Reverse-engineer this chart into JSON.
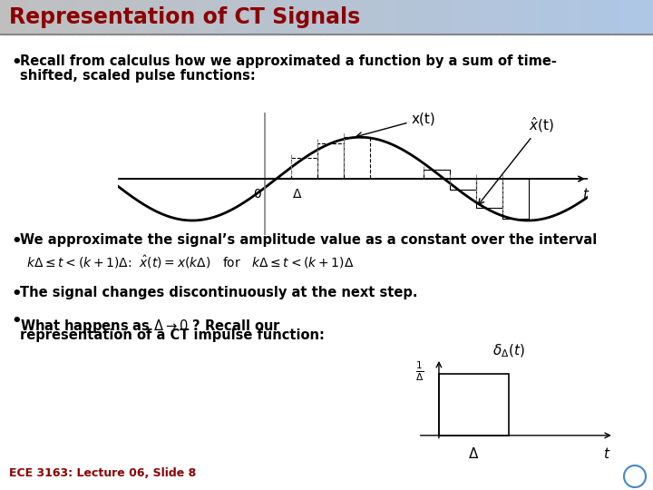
{
  "title": "Representation of CT Signals",
  "title_color": "#8B0000",
  "title_bg_gradient": [
    "#c0c0c0",
    "#add8e6"
  ],
  "background_color": "#ffffff",
  "bullet1": "Recall from calculus how we approximated a function by a sum of time-\n  shifted, scaled pulse functions:",
  "bullet2": "We approximate the signal’s amplitude value as a constant over the interval",
  "bullet3": "The signal changes discontinuously at the next step.",
  "bullet4a": "What happens as ",
  "bullet4b": " ? Recall our\n  representation of a CT impulse function:",
  "footer": "ECE 3163: Lecture 06, Slide 8",
  "footer_color": "#8B0000"
}
